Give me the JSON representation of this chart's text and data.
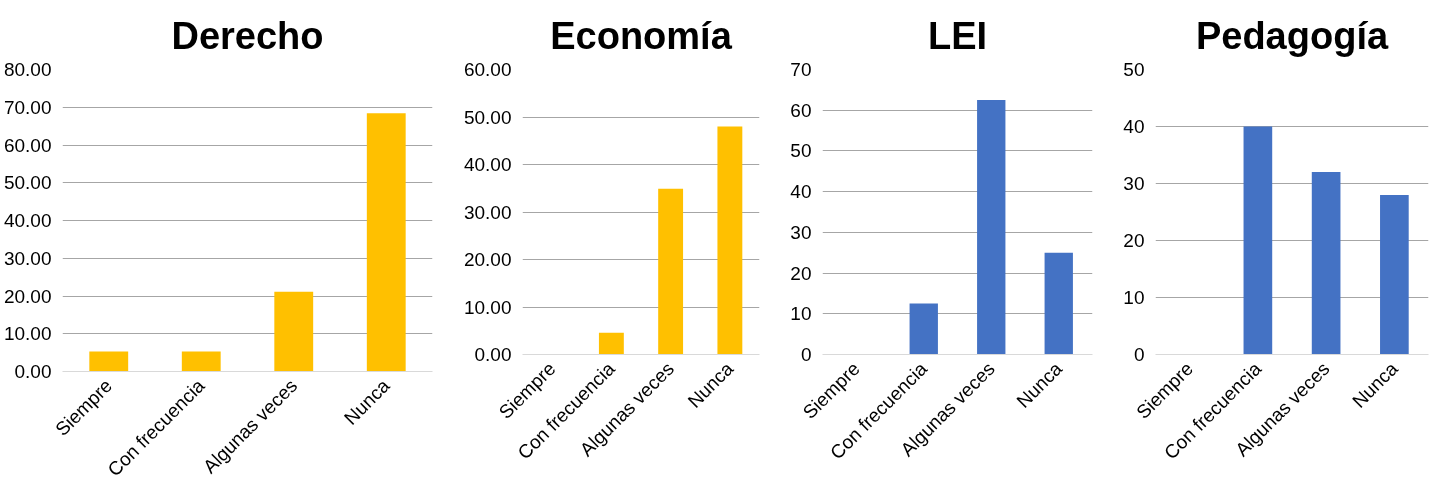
{
  "chart_data": [
    {
      "type": "bar",
      "title": "Derecho",
      "categories": [
        "Siempre",
        "Con frecuencia",
        "Algunas veces",
        "Nunca"
      ],
      "values": [
        5.3,
        5.3,
        21.1,
        68.4
      ],
      "color": "#ffc000",
      "ylim": [
        0,
        80
      ],
      "yticks": [
        {
          "value": 0,
          "label": "0.00"
        },
        {
          "value": 10,
          "label": "10.00"
        },
        {
          "value": 20,
          "label": "20.00"
        },
        {
          "value": 30,
          "label": "30.00"
        },
        {
          "value": 40,
          "label": "40.00"
        },
        {
          "value": 50,
          "label": "50.00"
        },
        {
          "value": 60,
          "label": "60.00"
        },
        {
          "value": 70,
          "label": "70.00"
        },
        {
          "value": 80,
          "label": "80.00"
        }
      ],
      "grid": "y"
    },
    {
      "type": "bar",
      "title": "Economía",
      "categories": [
        "Siempre",
        "Con frecuencia",
        "Algunas veces",
        "Nunca"
      ],
      "values": [
        0,
        4.6,
        34.9,
        48.0
      ],
      "color": "#ffc000",
      "ylim": [
        0,
        60
      ],
      "yticks": [
        {
          "value": 0,
          "label": "0.00"
        },
        {
          "value": 10,
          "label": "10.00"
        },
        {
          "value": 20,
          "label": "20.00"
        },
        {
          "value": 30,
          "label": "30.00"
        },
        {
          "value": 40,
          "label": "40.00"
        },
        {
          "value": 50,
          "label": "50.00"
        },
        {
          "value": 60,
          "label": "60.00"
        }
      ],
      "grid": "y"
    },
    {
      "type": "bar",
      "title": "LEI",
      "categories": [
        "Siempre",
        "Con frecuencia",
        "Algunas veces",
        "Nunca"
      ],
      "values": [
        0,
        12.5,
        62.5,
        25
      ],
      "color": "#4472c4",
      "ylim": [
        0,
        70
      ],
      "yticks": [
        0,
        10,
        20,
        30,
        40,
        50,
        60,
        70
      ],
      "grid": "y"
    },
    {
      "type": "bar",
      "title": "Pedagogía",
      "categories": [
        "Siempre",
        "Con frecuencia",
        "Algunas veces",
        "Nunca"
      ],
      "values": [
        0,
        40,
        32,
        28
      ],
      "color": "#4472c4",
      "ylim": [
        0,
        50
      ],
      "yticks": [
        0,
        10,
        20,
        30,
        40,
        50
      ],
      "grid": "y"
    }
  ]
}
